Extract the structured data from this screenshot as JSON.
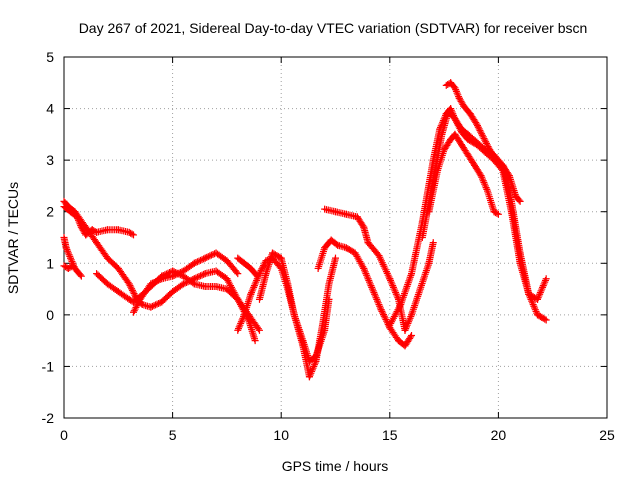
{
  "chart_data": {
    "type": "scatter",
    "title": "Day 267 of 2021, Sidereal Day-to-day VTEC variation (SDTVAR) for receiver bscn",
    "xlabel": "GPS time / hours",
    "ylabel": "SDTVAR / TECUs",
    "xlim": [
      0,
      25
    ],
    "ylim": [
      -2,
      5
    ],
    "xticks": [
      0,
      5,
      10,
      15,
      20,
      25
    ],
    "yticks": [
      -2,
      -1,
      0,
      1,
      2,
      3,
      4,
      5
    ],
    "grid": true,
    "marker": "+",
    "color": "#ff0000",
    "series": [
      {
        "name": "arc1",
        "x": [
          0,
          0.3,
          0.6,
          0.8,
          1.0,
          1.3,
          1.5,
          2.0,
          2.5,
          3.0,
          3.2
        ],
        "y": [
          2.1,
          2.0,
          1.9,
          1.7,
          1.55,
          1.65,
          1.6,
          1.65,
          1.65,
          1.6,
          1.55
        ]
      },
      {
        "name": "arc2",
        "x": [
          0,
          0.2,
          0.5,
          1.0,
          1.5,
          2.0,
          2.5,
          3.0,
          3.3,
          3.6,
          4.0,
          4.5,
          5.0,
          5.5,
          6.0,
          6.5,
          7.0,
          7.5,
          8.0,
          8.5,
          9.0
        ],
        "y": [
          2.2,
          2.1,
          2.0,
          1.7,
          1.4,
          1.1,
          0.9,
          0.6,
          0.35,
          0.2,
          0.15,
          0.25,
          0.45,
          0.6,
          0.7,
          0.8,
          0.85,
          0.7,
          0.3,
          0.0,
          -0.3
        ]
      },
      {
        "name": "arc3",
        "x": [
          0,
          0.1,
          0.3,
          0.5,
          0.8
        ],
        "y": [
          1.5,
          1.3,
          1.1,
          0.9,
          0.75
        ]
      },
      {
        "name": "arc4",
        "x": [
          0,
          0.2,
          0.4
        ],
        "y": [
          0.95,
          0.9,
          0.95
        ]
      },
      {
        "name": "arc5",
        "x": [
          1.5,
          2.0,
          2.5,
          3.0,
          3.2,
          3.5,
          4.0,
          4.5,
          5.0,
          5.5,
          6.0,
          6.5,
          7.0,
          7.5,
          8.0,
          8.5,
          8.8
        ],
        "y": [
          0.8,
          0.6,
          0.45,
          0.3,
          0.25,
          0.35,
          0.55,
          0.75,
          0.85,
          0.75,
          0.6,
          0.55,
          0.55,
          0.5,
          0.3,
          -0.1,
          -0.5
        ]
      },
      {
        "name": "arc6",
        "x": [
          3.2,
          3.5,
          4.0,
          4.5,
          5.0,
          5.5,
          6.0,
          6.5,
          7.0,
          7.5,
          8.0
        ],
        "y": [
          0.05,
          0.3,
          0.6,
          0.7,
          0.75,
          0.85,
          1.0,
          1.1,
          1.2,
          1.05,
          0.8
        ]
      },
      {
        "name": "arc7",
        "x": [
          8.0,
          8.3,
          8.6,
          9.0,
          9.3,
          9.6,
          10.0,
          10.3,
          10.6,
          11.0,
          11.3,
          11.6,
          12.0,
          12.2
        ],
        "y": [
          -0.3,
          0.0,
          0.4,
          0.8,
          1.05,
          1.1,
          0.9,
          0.5,
          0.0,
          -0.5,
          -0.9,
          -0.8,
          -0.3,
          0.3
        ]
      },
      {
        "name": "arc8",
        "x": [
          8.0,
          8.3,
          8.6,
          8.9
        ],
        "y": [
          1.1,
          1.0,
          0.9,
          0.75
        ]
      },
      {
        "name": "arc9",
        "x": [
          9.0,
          9.3,
          9.6,
          10.0,
          10.3,
          10.6,
          11.0,
          11.3,
          11.6,
          11.9,
          12.2,
          12.5
        ],
        "y": [
          0.3,
          0.8,
          1.2,
          1.1,
          0.6,
          0.0,
          -0.6,
          -1.2,
          -0.9,
          -0.2,
          0.6,
          1.1
        ]
      },
      {
        "name": "arc10",
        "x": [
          11.7,
          12.0,
          12.3,
          12.6,
          13.0,
          13.4,
          13.8,
          14.2,
          14.6,
          15.0,
          15.4,
          15.7,
          16.0
        ],
        "y": [
          0.9,
          1.3,
          1.45,
          1.35,
          1.3,
          1.2,
          0.9,
          0.5,
          0.1,
          -0.25,
          -0.5,
          -0.6,
          -0.4
        ]
      },
      {
        "name": "arc11",
        "x": [
          12.0,
          12.5,
          13.0,
          13.5,
          13.8,
          14.0,
          14.5,
          15.0,
          15.4,
          15.7,
          16.0,
          16.4,
          16.8,
          17.0
        ],
        "y": [
          2.05,
          2.0,
          1.95,
          1.9,
          1.7,
          1.4,
          1.15,
          0.7,
          0.3,
          -0.3,
          0.0,
          0.5,
          1.0,
          1.4
        ]
      },
      {
        "name": "arc12",
        "x": [
          15.0,
          15.5,
          16.0,
          16.5,
          17.0,
          17.3,
          17.6,
          17.8,
          18.0,
          18.3,
          18.6,
          19.0,
          19.4,
          19.8,
          20.2,
          20.6,
          21.0,
          21.4,
          21.8,
          22.0,
          22.2
        ],
        "y": [
          -0.2,
          0.2,
          0.8,
          1.8,
          3.0,
          3.6,
          3.9,
          4.0,
          3.8,
          3.6,
          3.5,
          3.35,
          3.2,
          3.1,
          2.9,
          2.2,
          1.2,
          0.4,
          0.0,
          -0.05,
          -0.1
        ]
      },
      {
        "name": "arc13",
        "x": [
          16.5,
          17.0,
          17.4,
          17.7,
          18.0,
          18.3,
          18.6,
          19.0,
          19.4,
          19.8,
          20.2,
          20.6,
          21.0,
          21.4,
          21.8,
          22.2
        ],
        "y": [
          1.5,
          2.6,
          3.5,
          3.95,
          3.8,
          3.55,
          3.4,
          3.3,
          3.15,
          3.0,
          2.8,
          2.0,
          1.0,
          0.4,
          0.3,
          0.7
        ]
      },
      {
        "name": "arc14",
        "x": [
          16.8,
          17.2,
          17.5,
          17.8,
          18.0,
          18.3,
          18.6,
          18.9,
          19.2,
          19.5,
          19.8,
          20.0
        ],
        "y": [
          2.0,
          2.8,
          3.2,
          3.4,
          3.5,
          3.3,
          3.1,
          2.9,
          2.7,
          2.4,
          2.0,
          1.95
        ]
      },
      {
        "name": "arc15",
        "x": [
          17.6,
          17.8,
          18.0,
          18.2,
          18.4,
          18.7,
          19.0,
          19.3,
          19.6,
          19.9,
          20.2,
          20.5,
          20.8,
          21.0
        ],
        "y": [
          4.45,
          4.5,
          4.4,
          4.2,
          4.05,
          3.9,
          3.7,
          3.45,
          3.2,
          3.0,
          2.9,
          2.7,
          2.3,
          2.2
        ]
      }
    ]
  }
}
